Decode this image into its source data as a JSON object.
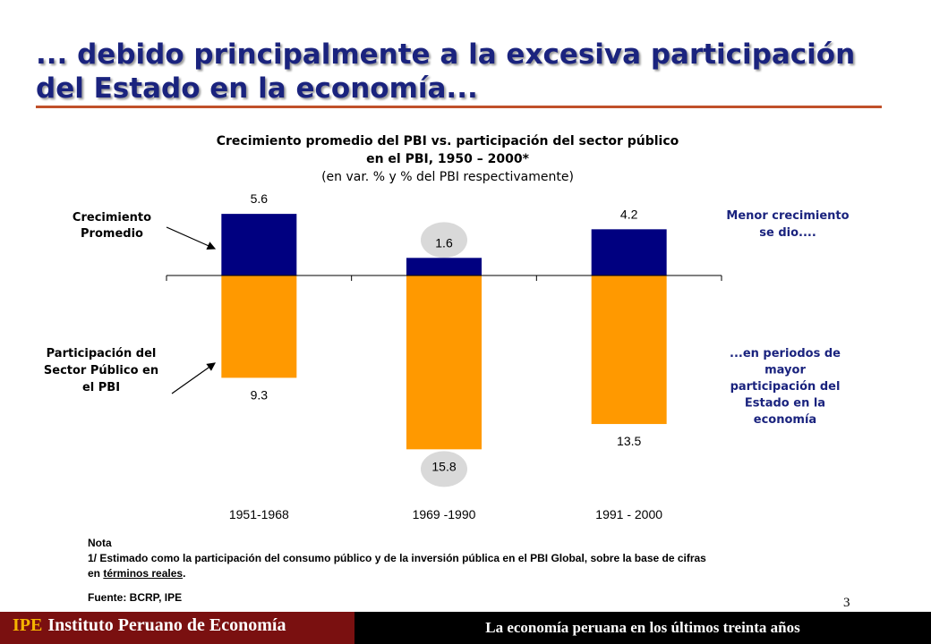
{
  "slide": {
    "title": "... debido principalmente a la excesiva participación del Estado en la economía...",
    "page_number": "3"
  },
  "chart_header": {
    "title_line1": "Crecimiento promedio del PBI vs. participación del sector público",
    "title_line2": "en el PBI, 1950 – 2000*",
    "subtitle": "(en var. % y % del PBI respectivamente)"
  },
  "annotations": {
    "left_top": [
      "Crecimiento",
      "Promedio"
    ],
    "left_bottom": [
      "Participación del",
      "Sector Público en",
      "el PBI"
    ],
    "right_top": [
      "Menor crecimiento",
      "se dio...."
    ],
    "right_bottom": [
      "...en periodos de",
      "mayor",
      "participación del",
      "Estado en la",
      "economía"
    ]
  },
  "chart_data": {
    "type": "bar",
    "categories": [
      "1951-1968",
      "1969 -1990",
      "1991 - 2000"
    ],
    "series": [
      {
        "values": [
          5.6,
          1.6,
          4.2
        ],
        "color": "#000080",
        "direction": "up"
      },
      {
        "values": [
          9.3,
          15.8,
          13.5
        ],
        "color": "#FF9900",
        "direction": "down"
      }
    ],
    "highlighted_category": "1969 -1990",
    "highlight_color": "#d9d9d9",
    "annotation_color": "#1a237e",
    "grid": false,
    "legend": "none"
  },
  "notes": {
    "heading": "Nota",
    "line1": "1/ Estimado como la participación del consumo público y de la inversión pública en el PBI Global, sobre la base de cifras",
    "line2_prefix": "en ",
    "line2_underlined": "términos reales",
    "line2_suffix": ".",
    "source": "Fuente: BCRP, IPE"
  },
  "footer": {
    "abbr": "IPE",
    "org": "Instituto Peruano de Economía",
    "tagline": "La economía peruana en los últimos treinta años"
  }
}
